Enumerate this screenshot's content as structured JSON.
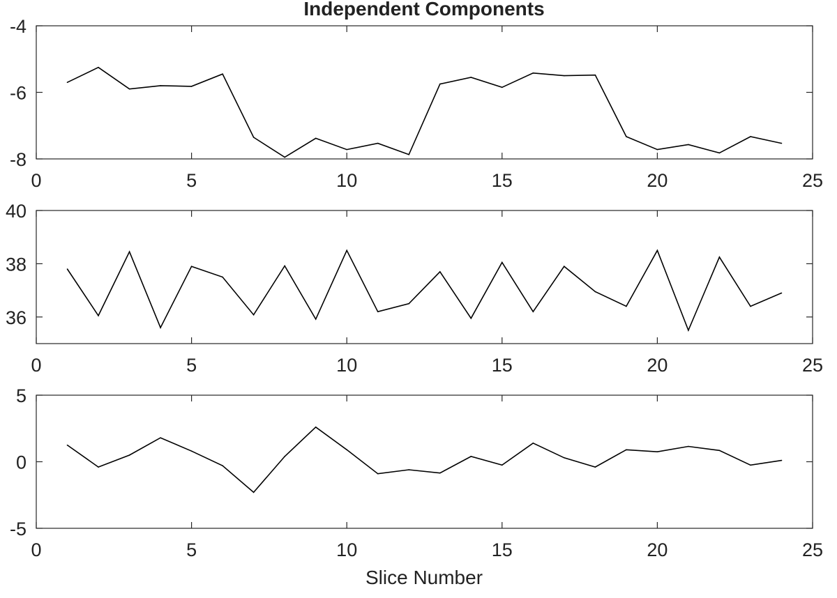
{
  "chart_data": {
    "type": "line",
    "title": "Independent Components",
    "xlabel": "Slice Number",
    "line_color": "#000000",
    "axis_color": "#262626",
    "subplots": [
      {
        "x": [
          1,
          2,
          3,
          4,
          5,
          6,
          7,
          8,
          9,
          10,
          11,
          12,
          13,
          14,
          15,
          16,
          17,
          18,
          19,
          20,
          21,
          22,
          23,
          24
        ],
        "y": [
          -5.7,
          -5.25,
          -5.9,
          -5.8,
          -5.82,
          -5.45,
          -7.35,
          -7.95,
          -7.38,
          -7.72,
          -7.53,
          -7.87,
          -5.75,
          -5.55,
          -5.85,
          -5.42,
          -5.5,
          -5.48,
          -7.33,
          -7.72,
          -7.57,
          -7.82,
          -7.33,
          -7.53
        ],
        "xlim": [
          0,
          25
        ],
        "ylim": [
          -8,
          -4
        ],
        "xticks": [
          0,
          5,
          10,
          15,
          20,
          25
        ],
        "xtick_labels": [
          "0",
          "5",
          "10",
          "15",
          "20",
          "25"
        ],
        "yticks": [
          -8,
          -6,
          -4
        ],
        "ytick_labels": [
          "-8",
          "-6",
          "-4"
        ],
        "grid": false
      },
      {
        "x": [
          1,
          2,
          3,
          4,
          5,
          6,
          7,
          8,
          9,
          10,
          11,
          12,
          13,
          14,
          15,
          16,
          17,
          18,
          19,
          20,
          21,
          22,
          23,
          24
        ],
        "y": [
          37.8,
          36.05,
          38.45,
          35.6,
          37.9,
          37.5,
          36.08,
          37.92,
          35.92,
          38.5,
          36.2,
          36.5,
          37.7,
          35.95,
          38.05,
          36.2,
          37.9,
          36.95,
          36.4,
          38.5,
          35.5,
          38.25,
          36.4,
          36.9
        ],
        "xlim": [
          0,
          25
        ],
        "ylim": [
          35,
          40
        ],
        "xticks": [
          0,
          5,
          10,
          15,
          20,
          25
        ],
        "xtick_labels": [
          "0",
          "5",
          "10",
          "15",
          "20",
          "25"
        ],
        "yticks": [
          36,
          38,
          40
        ],
        "ytick_labels": [
          "36",
          "38",
          "40"
        ],
        "grid": false
      },
      {
        "x": [
          1,
          2,
          3,
          4,
          5,
          6,
          7,
          8,
          9,
          10,
          11,
          12,
          13,
          14,
          15,
          16,
          17,
          18,
          19,
          20,
          21,
          22,
          23,
          24
        ],
        "y": [
          1.25,
          -0.4,
          0.5,
          1.8,
          0.8,
          -0.3,
          -2.3,
          0.4,
          2.6,
          0.9,
          -0.9,
          -0.6,
          -0.85,
          0.4,
          -0.25,
          1.4,
          0.3,
          -0.4,
          0.9,
          0.75,
          1.15,
          0.85,
          -0.25,
          0.1
        ],
        "xlim": [
          0,
          25
        ],
        "ylim": [
          -5,
          5
        ],
        "xticks": [
          0,
          5,
          10,
          15,
          20,
          25
        ],
        "xtick_labels": [
          "0",
          "5",
          "10",
          "15",
          "20",
          "25"
        ],
        "yticks": [
          -5,
          0,
          5
        ],
        "ytick_labels": [
          "-5",
          "0",
          "5"
        ],
        "grid": false
      }
    ]
  }
}
